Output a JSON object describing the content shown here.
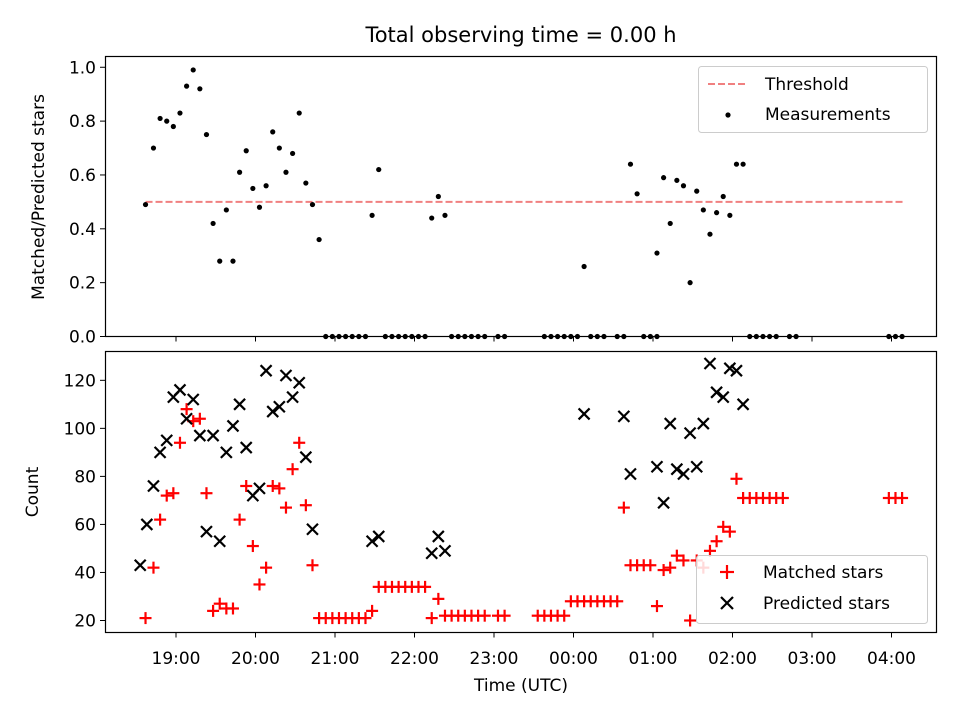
{
  "chart_data": [
    {
      "type": "scatter",
      "title": "Total observing time = 0.00 h",
      "ylabel": "Matched/Predicted stars",
      "xlabel": "",
      "ylim": [
        0,
        1.04
      ],
      "yticks": [
        "0.0",
        "0.2",
        "0.4",
        "0.6",
        "0.8",
        "1.0"
      ],
      "legend": {
        "placement": "upper right",
        "entries": [
          "Threshold",
          "Measurements"
        ]
      },
      "threshold": {
        "name": "Threshold",
        "value": 0.5,
        "x_range": [
          "18:37",
          "04:10"
        ],
        "color": "#f08080"
      },
      "series": [
        {
          "name": "Measurements",
          "color": "#000000",
          "points": [
            [
              "18:37",
              0.49
            ],
            [
              "18:43",
              0.7
            ],
            [
              "18:48",
              0.81
            ],
            [
              "18:53",
              0.8
            ],
            [
              "18:58",
              0.78
            ],
            [
              "19:03",
              0.83
            ],
            [
              "19:08",
              0.93
            ],
            [
              "19:13",
              0.99
            ],
            [
              "19:18",
              0.92
            ],
            [
              "19:23",
              0.75
            ],
            [
              "19:28",
              0.42
            ],
            [
              "19:33",
              0.28
            ],
            [
              "19:38",
              0.47
            ],
            [
              "19:43",
              0.28
            ],
            [
              "19:48",
              0.61
            ],
            [
              "19:53",
              0.69
            ],
            [
              "19:58",
              0.55
            ],
            [
              "20:03",
              0.48
            ],
            [
              "20:08",
              0.56
            ],
            [
              "20:13",
              0.76
            ],
            [
              "20:18",
              0.7
            ],
            [
              "20:23",
              0.61
            ],
            [
              "20:28",
              0.68
            ],
            [
              "20:33",
              0.83
            ],
            [
              "20:38",
              0.57
            ],
            [
              "20:43",
              0.49
            ],
            [
              "20:48",
              0.36
            ],
            [
              "20:53",
              0
            ],
            [
              "20:58",
              0
            ],
            [
              "21:03",
              0
            ],
            [
              "21:08",
              0
            ],
            [
              "21:13",
              0
            ],
            [
              "21:18",
              0
            ],
            [
              "21:23",
              0
            ],
            [
              "21:28",
              0.45
            ],
            [
              "21:33",
              0.62
            ],
            [
              "21:38",
              0
            ],
            [
              "21:43",
              0
            ],
            [
              "21:48",
              0
            ],
            [
              "21:53",
              0
            ],
            [
              "21:58",
              0
            ],
            [
              "22:03",
              0
            ],
            [
              "22:08",
              0
            ],
            [
              "22:13",
              0.44
            ],
            [
              "22:18",
              0.52
            ],
            [
              "22:23",
              0.45
            ],
            [
              "22:28",
              0
            ],
            [
              "22:33",
              0
            ],
            [
              "22:38",
              0
            ],
            [
              "22:43",
              0
            ],
            [
              "22:48",
              0
            ],
            [
              "22:53",
              0
            ],
            [
              "23:03",
              0
            ],
            [
              "23:08",
              0
            ],
            [
              "23:38",
              0
            ],
            [
              "23:43",
              0
            ],
            [
              "23:48",
              0
            ],
            [
              "23:53",
              0
            ],
            [
              "23:58",
              0
            ],
            [
              "00:03",
              0
            ],
            [
              "00:08",
              0.26
            ],
            [
              "00:13",
              0
            ],
            [
              "00:18",
              0
            ],
            [
              "00:23",
              0
            ],
            [
              "00:33",
              0
            ],
            [
              "00:38",
              0
            ],
            [
              "00:43",
              0.64
            ],
            [
              "00:48",
              0.53
            ],
            [
              "00:53",
              0
            ],
            [
              "00:58",
              0
            ],
            [
              "01:03",
              0
            ],
            [
              "01:03",
              0.31
            ],
            [
              "01:08",
              0.59
            ],
            [
              "01:13",
              0.42
            ],
            [
              "01:18",
              0.58
            ],
            [
              "01:23",
              0.56
            ],
            [
              "01:28",
              0.2
            ],
            [
              "01:33",
              0.54
            ],
            [
              "01:38",
              0.47
            ],
            [
              "01:43",
              0.38
            ],
            [
              "01:48",
              0.46
            ],
            [
              "01:53",
              0.52
            ],
            [
              "01:58",
              0.45
            ],
            [
              "02:03",
              0.64
            ],
            [
              "02:08",
              0.64
            ],
            [
              "02:13",
              0
            ],
            [
              "02:18",
              0
            ],
            [
              "02:23",
              0
            ],
            [
              "02:28",
              0
            ],
            [
              "02:33",
              0
            ],
            [
              "02:43",
              0
            ],
            [
              "02:48",
              0
            ],
            [
              "03:58",
              0
            ],
            [
              "04:03",
              0
            ],
            [
              "04:08",
              0
            ]
          ]
        }
      ]
    },
    {
      "type": "scatter",
      "xlabel": "Time (UTC)",
      "ylabel": "Count",
      "ylim": [
        15,
        132
      ],
      "yticks": [
        "20",
        "40",
        "60",
        "80",
        "100",
        "120"
      ],
      "xticks": [
        "19:00",
        "20:00",
        "21:00",
        "22:00",
        "23:00",
        "00:00",
        "01:00",
        "02:00",
        "03:00",
        "04:00"
      ],
      "legend": {
        "placement": "lower right",
        "entries": [
          "Matched stars",
          "Predicted stars"
        ]
      },
      "series": [
        {
          "name": "Matched stars",
          "marker": "+",
          "color": "#ff0000",
          "points": [
            [
              "18:37",
              21
            ],
            [
              "18:43",
              42
            ],
            [
              "18:48",
              62
            ],
            [
              "18:53",
              72
            ],
            [
              "18:58",
              73
            ],
            [
              "19:03",
              94
            ],
            [
              "19:08",
              108
            ],
            [
              "19:13",
              103
            ],
            [
              "19:18",
              104
            ],
            [
              "19:23",
              73
            ],
            [
              "19:28",
              24
            ],
            [
              "19:33",
              27
            ],
            [
              "19:38",
              25
            ],
            [
              "19:43",
              25
            ],
            [
              "19:48",
              62
            ],
            [
              "19:53",
              76
            ],
            [
              "19:58",
              51
            ],
            [
              "20:03",
              35
            ],
            [
              "20:08",
              42
            ],
            [
              "20:13",
              76
            ],
            [
              "20:18",
              75
            ],
            [
              "20:23",
              67
            ],
            [
              "20:28",
              83
            ],
            [
              "20:33",
              94
            ],
            [
              "20:38",
              68
            ],
            [
              "20:43",
              43
            ],
            [
              "20:48",
              21
            ],
            [
              "20:53",
              21
            ],
            [
              "20:58",
              21
            ],
            [
              "21:03",
              21
            ],
            [
              "21:08",
              21
            ],
            [
              "21:13",
              21
            ],
            [
              "21:18",
              21
            ],
            [
              "21:23",
              21
            ],
            [
              "21:28",
              24
            ],
            [
              "21:33",
              34
            ],
            [
              "21:38",
              34
            ],
            [
              "21:43",
              34
            ],
            [
              "21:48",
              34
            ],
            [
              "21:53",
              34
            ],
            [
              "21:58",
              34
            ],
            [
              "22:03",
              34
            ],
            [
              "22:08",
              34
            ],
            [
              "22:13",
              21
            ],
            [
              "22:18",
              29
            ],
            [
              "22:23",
              22
            ],
            [
              "22:28",
              22
            ],
            [
              "22:33",
              22
            ],
            [
              "22:38",
              22
            ],
            [
              "22:43",
              22
            ],
            [
              "22:48",
              22
            ],
            [
              "22:53",
              22
            ],
            [
              "23:03",
              22
            ],
            [
              "23:08",
              22
            ],
            [
              "23:33",
              22
            ],
            [
              "23:38",
              22
            ],
            [
              "23:43",
              22
            ],
            [
              "23:48",
              22
            ],
            [
              "23:53",
              22
            ],
            [
              "23:58",
              28
            ],
            [
              "00:03",
              28
            ],
            [
              "00:08",
              28
            ],
            [
              "00:13",
              28
            ],
            [
              "00:18",
              28
            ],
            [
              "00:23",
              28
            ],
            [
              "00:28",
              28
            ],
            [
              "00:33",
              28
            ],
            [
              "00:38",
              67
            ],
            [
              "00:43",
              43
            ],
            [
              "00:48",
              43
            ],
            [
              "00:53",
              43
            ],
            [
              "00:58",
              43
            ],
            [
              "01:03",
              26
            ],
            [
              "01:08",
              41
            ],
            [
              "01:13",
              42
            ],
            [
              "01:18",
              47
            ],
            [
              "01:23",
              45
            ],
            [
              "01:28",
              20
            ],
            [
              "01:33",
              45
            ],
            [
              "01:38",
              42
            ],
            [
              "01:43",
              49
            ],
            [
              "01:48",
              53
            ],
            [
              "01:53",
              59
            ],
            [
              "01:58",
              57
            ],
            [
              "02:03",
              79
            ],
            [
              "02:08",
              71
            ],
            [
              "02:13",
              71
            ],
            [
              "02:18",
              71
            ],
            [
              "02:23",
              71
            ],
            [
              "02:28",
              71
            ],
            [
              "02:33",
              71
            ],
            [
              "02:38",
              71
            ],
            [
              "03:58",
              71
            ],
            [
              "04:03",
              71
            ],
            [
              "04:08",
              71
            ]
          ]
        },
        {
          "name": "Predicted stars",
          "marker": "x",
          "color": "#000000",
          "points": [
            [
              "18:33",
              43
            ],
            [
              "18:38",
              60
            ],
            [
              "18:43",
              76
            ],
            [
              "18:48",
              90
            ],
            [
              "18:53",
              95
            ],
            [
              "18:58",
              113
            ],
            [
              "19:03",
              116
            ],
            [
              "19:08",
              104
            ],
            [
              "19:13",
              112
            ],
            [
              "19:18",
              97
            ],
            [
              "19:23",
              57
            ],
            [
              "19:28",
              97
            ],
            [
              "19:33",
              53
            ],
            [
              "19:38",
              90
            ],
            [
              "19:43",
              101
            ],
            [
              "19:48",
              110
            ],
            [
              "19:53",
              92
            ],
            [
              "19:58",
              72
            ],
            [
              "20:03",
              75
            ],
            [
              "20:08",
              124
            ],
            [
              "20:13",
              107
            ],
            [
              "20:18",
              109
            ],
            [
              "20:23",
              122
            ],
            [
              "20:28",
              113
            ],
            [
              "20:33",
              119
            ],
            [
              "20:38",
              88
            ],
            [
              "20:43",
              58
            ],
            [
              "21:28",
              53
            ],
            [
              "21:33",
              55
            ],
            [
              "22:13",
              48
            ],
            [
              "22:18",
              55
            ],
            [
              "22:23",
              49
            ],
            [
              "00:08",
              106
            ],
            [
              "00:38",
              105
            ],
            [
              "00:43",
              81
            ],
            [
              "01:03",
              84
            ],
            [
              "01:08",
              69
            ],
            [
              "01:13",
              102
            ],
            [
              "01:18",
              83
            ],
            [
              "01:23",
              81
            ],
            [
              "01:28",
              98
            ],
            [
              "01:33",
              84
            ],
            [
              "01:38",
              102
            ],
            [
              "01:43",
              127
            ],
            [
              "01:48",
              115
            ],
            [
              "01:53",
              113
            ],
            [
              "01:58",
              125
            ],
            [
              "02:03",
              124
            ],
            [
              "02:08",
              110
            ]
          ]
        }
      ]
    }
  ]
}
